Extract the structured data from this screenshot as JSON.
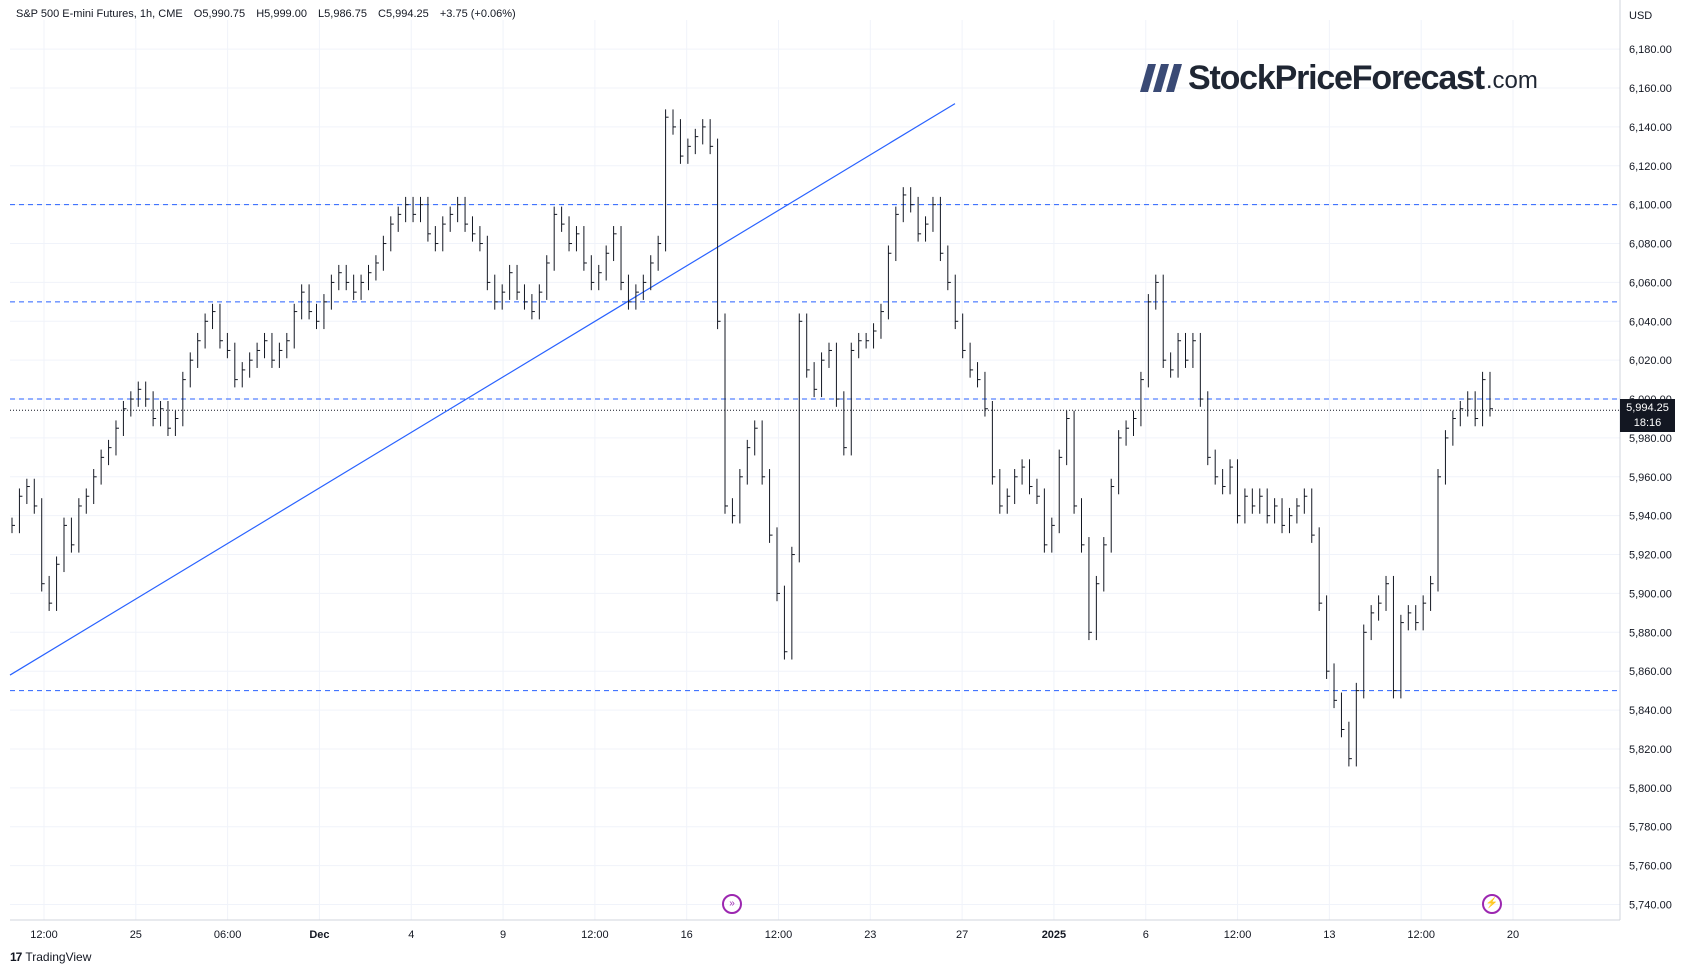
{
  "header": {
    "symbol": "S&P 500 E-mini Futures, 1h, CME",
    "open": "O5,990.75",
    "high": "H5,999.00",
    "low": "L5,986.75",
    "close": "C5,994.25",
    "change": "+3.75 (+0.06%)"
  },
  "currency": "USD",
  "brand": {
    "word": "StockPriceForecast",
    "domain": ".com"
  },
  "footer": {
    "logo_text": "TradingView",
    "logo_mark": "17"
  },
  "last_price": {
    "value": "5,994.25",
    "countdown": "18:16"
  },
  "icons": {
    "top": "fast-forward-icon",
    "bottom": "lightning-icon"
  },
  "colors": {
    "candle": "#131722",
    "level_line": "#2962ff",
    "trendline": "#2962ff",
    "event_icon": "#9c27b0"
  },
  "chart_data": {
    "type": "line",
    "title": "",
    "y_axis": {
      "min": 5732,
      "max": 6195,
      "ticks": [
        "6,180.00",
        "6,160.00",
        "6,140.00",
        "6,120.00",
        "6,100.00",
        "6,080.00",
        "6,060.00",
        "6,040.00",
        "6,020.00",
        "6,000.00",
        "5,980.00",
        "5,960.00",
        "5,940.00",
        "5,920.00",
        "5,900.00",
        "5,880.00",
        "5,860.00",
        "5,840.00",
        "5,820.00",
        "5,800.00",
        "5,780.00",
        "5,760.00",
        "5,740.00"
      ]
    },
    "x_axis": {
      "labels": [
        "12:00",
        "25",
        "06:00",
        "Dec",
        "4",
        "9",
        "12:00",
        "16",
        "12:00",
        "23",
        "27",
        "2025",
        "6",
        "12:00",
        "13",
        "12:00",
        "20"
      ]
    },
    "horizontal_levels": [
      6100,
      6050,
      6000,
      5850
    ],
    "last_price_line": 5994.25,
    "trendline": {
      "from": 5858,
      "to": 6152
    },
    "series": [
      {
        "values": [
          5935,
          5950,
          5955,
          5945,
          5905,
          5895,
          5915,
          5935,
          5925,
          5945,
          5950,
          5960,
          5970,
          5975,
          5985,
          5995,
          6000,
          6005,
          6000,
          5990,
          5995,
          5985,
          5990,
          6010,
          6020,
          6030,
          6040,
          6045,
          6030,
          6025,
          6010,
          6015,
          6020,
          6025,
          6030,
          6020,
          6025,
          6030,
          6045,
          6055,
          6045,
          6040,
          6050,
          6060,
          6065,
          6060,
          6055,
          6060,
          6065,
          6070,
          6080,
          6090,
          6095,
          6100,
          6095,
          6100,
          6085,
          6080,
          6090,
          6095,
          6100,
          6090,
          6085,
          6080,
          6060,
          6050,
          6055,
          6065,
          6055,
          6050,
          6045,
          6055,
          6070,
          6095,
          6090,
          6080,
          6085,
          6070,
          6060,
          6065,
          6075,
          6085,
          6060,
          6050,
          6055,
          6060,
          6070,
          6080,
          6145,
          6140,
          6125,
          6130,
          6135,
          6140,
          6130,
          6040,
          5945,
          5940,
          5960,
          5975,
          5985,
          5960,
          5930,
          5900,
          5870,
          5920,
          6040,
          6015,
          6005,
          6020,
          6025,
          6000,
          5975,
          6025,
          6030,
          6030,
          6035,
          6045,
          6075,
          6095,
          6105,
          6100,
          6085,
          6090,
          6100,
          6075,
          6060,
          6040,
          6025,
          6015,
          6010,
          5995,
          5960,
          5945,
          5950,
          5960,
          5965,
          5955,
          5950,
          5925,
          5935,
          5970,
          5990,
          5945,
          5925,
          5880,
          5905,
          5925,
          5955,
          5980,
          5985,
          5990,
          6010,
          6050,
          6060,
          6020,
          6015,
          6030,
          6020,
          6030,
          6000,
          5970,
          5960,
          5955,
          5965,
          5940,
          5950,
          5945,
          5950,
          5940,
          5945,
          5935,
          5940,
          5945,
          5950,
          5930,
          5895,
          5860,
          5845,
          5830,
          5815,
          5850,
          5880,
          5890,
          5895,
          5905,
          5850,
          5885,
          5890,
          5885,
          5895,
          5905,
          5960,
          5980,
          5990,
          5995,
          6000,
          5990,
          6010,
          5995
        ]
      }
    ]
  }
}
